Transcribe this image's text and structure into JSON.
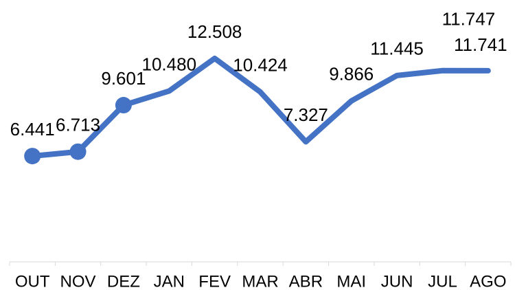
{
  "chart_data": {
    "type": "line",
    "categories": [
      "OUT",
      "NOV",
      "DEZ",
      "JAN",
      "FEV",
      "MAR",
      "ABR",
      "MAI",
      "JUN",
      "JUL",
      "AGO"
    ],
    "values": [
      6441,
      6713,
      9601,
      10480,
      12508,
      10424,
      7327,
      9866,
      11445,
      11747,
      11741
    ],
    "value_labels": [
      "6.441",
      "6.713",
      "9.601",
      "10.480",
      "12.508",
      "10.424",
      "7.327",
      "9.866",
      "11.445",
      "11.747",
      "11.741"
    ],
    "markers": [
      true,
      true,
      true,
      false,
      false,
      false,
      false,
      false,
      false,
      false,
      false
    ],
    "color": "#4472c4",
    "ylim": [
      0,
      14000
    ]
  }
}
